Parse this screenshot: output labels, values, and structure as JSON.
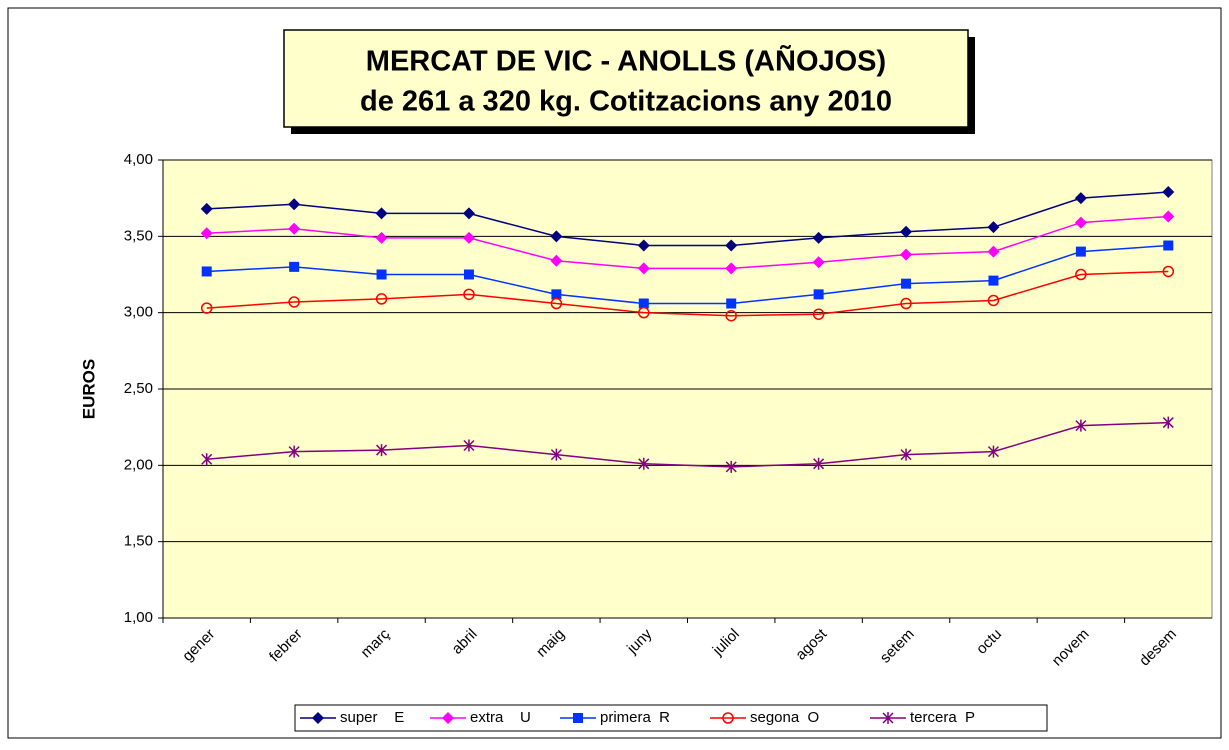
{
  "chart_data": {
    "type": "line",
    "title": "MERCAT DE VIC - ANOLLS (AÑOJOS)",
    "subtitle": "de 261 a 320 kg. Cotitzacions  any 2010",
    "y_label": "EUROS",
    "categories": [
      "gener",
      "febrer",
      "març",
      "abril",
      "maig",
      "juny",
      "juliol",
      "agost",
      "setem",
      "octu",
      "novem",
      "desem"
    ],
    "series": [
      {
        "name": "super    E",
        "color": "#000080",
        "marker": "diamond",
        "values": [
          3.68,
          3.71,
          3.65,
          3.65,
          3.5,
          3.44,
          3.44,
          3.49,
          3.53,
          3.56,
          3.75,
          3.79
        ]
      },
      {
        "name": "extra    U",
        "color": "#ff00ff",
        "marker": "diamond",
        "values": [
          3.52,
          3.55,
          3.49,
          3.49,
          3.34,
          3.29,
          3.29,
          3.33,
          3.38,
          3.4,
          3.59,
          3.63
        ]
      },
      {
        "name": "primera  R",
        "color": "#0033ff",
        "marker": "square",
        "values": [
          3.27,
          3.3,
          3.25,
          3.25,
          3.12,
          3.06,
          3.06,
          3.12,
          3.19,
          3.21,
          3.4,
          3.44
        ]
      },
      {
        "name": "segona  O",
        "color": "#ff0000",
        "marker": "circle",
        "values": [
          3.03,
          3.07,
          3.09,
          3.12,
          3.06,
          3.0,
          2.98,
          2.99,
          3.06,
          3.08,
          3.25,
          3.27
        ]
      },
      {
        "name": "tercera  P",
        "color": "#800080",
        "marker": "asterisk",
        "values": [
          2.04,
          2.09,
          2.1,
          2.13,
          2.07,
          2.01,
          1.99,
          2.01,
          2.07,
          2.09,
          2.26,
          2.28
        ]
      }
    ],
    "ylim": [
      1,
      4
    ],
    "yticks": [
      {
        "value": 1,
        "label": "1,00"
      },
      {
        "value": 1.5,
        "label": "1,50"
      },
      {
        "value": 2,
        "label": "2,00"
      },
      {
        "value": 2.5,
        "label": "2,50"
      },
      {
        "value": 3,
        "label": "3,00"
      },
      {
        "value": 3.5,
        "label": "3,50"
      },
      {
        "value": 4,
        "label": "4,00"
      }
    ],
    "grid": true,
    "legend": "bottom",
    "plot_background": "#ffffcc"
  }
}
